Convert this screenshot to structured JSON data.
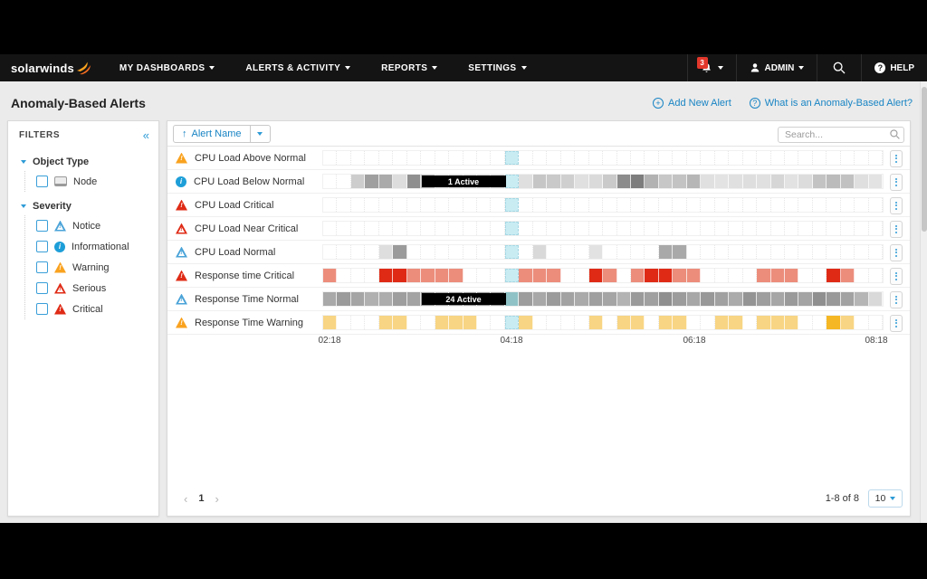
{
  "icons": {
    "plus": "+",
    "question": "?",
    "collapse": "«",
    "sort_asc": "↑",
    "prev": "‹",
    "next": "›",
    "exclamation": "!",
    "info_letter": "i"
  },
  "nav": {
    "brand": "solarwinds",
    "items": [
      {
        "label": "MY DASHBOARDS"
      },
      {
        "label": "ALERTS & ACTIVITY"
      },
      {
        "label": "REPORTS"
      },
      {
        "label": "SETTINGS"
      }
    ],
    "notification_count": "3",
    "user_label": "ADMIN",
    "help_label": "HELP"
  },
  "page": {
    "title": "Anomaly-Based Alerts",
    "add_new_alert": "Add New Alert",
    "what_is_link": "What is an Anomaly-Based Alert?"
  },
  "filters": {
    "title": "FILTERS",
    "groups": [
      {
        "label": "Object Type",
        "items": [
          {
            "label": "Node",
            "icon": "node"
          }
        ]
      },
      {
        "label": "Severity",
        "items": [
          {
            "label": "Notice",
            "icon": "notice"
          },
          {
            "label": "Informational",
            "icon": "informational"
          },
          {
            "label": "Warning",
            "icon": "warning"
          },
          {
            "label": "Serious",
            "icon": "serious"
          },
          {
            "label": "Critical",
            "icon": "critical"
          }
        ]
      }
    ]
  },
  "toolbar": {
    "sort_label": "Alert Name",
    "search_placeholder": "Search..."
  },
  "timeline": {
    "axis_labels": [
      "02:18",
      "04:18",
      "06:18",
      "08:18"
    ],
    "now_color": "#c9ecf3"
  },
  "colors": {
    "accent_blue": "#1884c4",
    "icon_blue": "#2e9bd6",
    "critical_red": "#df2b16",
    "salmon": "#ec8d7c",
    "warning_orange": "#f9a21f",
    "yellow": "#f8d584",
    "gold": "#f5b723",
    "info_blue": "#1d9ed8",
    "notice_blue": "#4aa3d8",
    "badge_red": "#e2372b"
  },
  "rows": [
    {
      "name": "CPU Load Above Normal",
      "severity": "warning",
      "cells": [
        "",
        "",
        "",
        "",
        "",
        "",
        "",
        "",
        "",
        "",
        "",
        "",
        "",
        "now",
        "",
        "",
        "",
        "",
        "",
        "",
        "",
        "",
        "",
        "",
        "",
        "",
        "",
        "",
        "",
        "",
        "",
        "",
        "",
        "",
        "",
        "",
        "",
        "",
        "",
        ""
      ]
    },
    {
      "name": "CPU Load Below Normal",
      "severity": "informational",
      "pill": {
        "label": "1 Active",
        "start": 7,
        "span": 6
      },
      "cells": [
        "",
        "",
        "#cdcdcd",
        "#9f9f9f",
        "#aaaaaa",
        "#dddddd",
        "#8f8f8f",
        "#bfbfbf",
        "#e2e2e2",
        "#d9d9d9",
        "#d9d9d9",
        "#d9d9d9",
        "#d9d9d9",
        "now",
        "#dfdfdf",
        "#c6c6c6",
        "#c9c9c9",
        "#cfcfcf",
        "#e0e0e0",
        "#dadada",
        "#cacaca",
        "#8c8c8c",
        "#7d7d7d",
        "#b2b2b2",
        "#c7c7c7",
        "#c3c3c3",
        "#b6b6b6",
        "#e0e0e0",
        "#e3e3e3",
        "#e0e0e0",
        "#dedede",
        "#e0e0e0",
        "#d6d6d6",
        "#e2e2e2",
        "#dcdcdc",
        "#c3c3c3",
        "#bbbbbb",
        "#c1c1c1",
        "#dfdfdf",
        "#e3e3e3"
      ]
    },
    {
      "name": "CPU Load Critical",
      "severity": "critical",
      "cells": [
        "",
        "",
        "",
        "",
        "",
        "",
        "",
        "",
        "",
        "",
        "",
        "",
        "",
        "now",
        "",
        "",
        "",
        "",
        "",
        "",
        "",
        "",
        "",
        "",
        "",
        "",
        "",
        "",
        "",
        "",
        "",
        "",
        "",
        "",
        "",
        "",
        "",
        "",
        "",
        ""
      ]
    },
    {
      "name": "CPU Load Near Critical",
      "severity": "serious",
      "cells": [
        "",
        "",
        "",
        "",
        "",
        "",
        "",
        "",
        "",
        "",
        "",
        "",
        "",
        "now",
        "",
        "",
        "",
        "",
        "",
        "",
        "",
        "",
        "",
        "",
        "",
        "",
        "",
        "",
        "",
        "",
        "",
        "",
        "",
        "",
        "",
        "",
        "",
        "",
        "",
        ""
      ]
    },
    {
      "name": "CPU Load Normal",
      "severity": "notice",
      "cells": [
        "",
        "",
        "",
        "",
        "#dedede",
        "#9b9b9b",
        "",
        "",
        "",
        "",
        "",
        "",
        "",
        "now",
        "",
        "#d9d9d9",
        "",
        "",
        "",
        "#e2e2e2",
        "",
        "",
        "",
        "",
        "#a9a9a9",
        "#a9a9a9",
        "",
        "",
        "",
        "",
        "",
        "",
        "",
        "",
        "",
        "",
        "",
        "",
        "",
        ""
      ]
    },
    {
      "name": "Response time Critical",
      "severity": "critical",
      "cells": [
        "s",
        "",
        "",
        "",
        "r",
        "r",
        "s",
        "s",
        "s",
        "s",
        "",
        "",
        "",
        "now",
        "s",
        "s",
        "s",
        "",
        "",
        "r",
        "s",
        "",
        "s",
        "r",
        "r",
        "s",
        "s",
        "",
        "",
        "",
        "",
        "s",
        "s",
        "s",
        "",
        "",
        "r",
        "s",
        "",
        ""
      ]
    },
    {
      "name": "Response Time Normal",
      "severity": "notice",
      "pill": {
        "label": "24 Active",
        "start": 7,
        "span": 6
      },
      "cells": [
        "#a9a9a9",
        "#9b9b9b",
        "#a5a5a5",
        "#b0b0b0",
        "#adadad",
        "#9e9e9e",
        "#a3a3a3",
        "#989898",
        "#a6a6a6",
        "#999999",
        "#999999",
        "#999999",
        "#999999",
        "#8fc2c6",
        "#9d9d9d",
        "#a8a8a8",
        "#9b9b9b",
        "#a2a2a2",
        "#aaaaaa",
        "#9f9f9f",
        "#a5a5a5",
        "#b3b3b3",
        "#9a9a9a",
        "#a0a0a0",
        "#8f8f8f",
        "#9c9c9c",
        "#a7a7a7",
        "#989898",
        "#a1a1a1",
        "#ababab",
        "#949494",
        "#9e9e9e",
        "#a6a6a6",
        "#9a9a9a",
        "#a4a4a4",
        "#8f8f8f",
        "#999999",
        "#a2a2a2",
        "#b5b5b5",
        "#d9d9d9"
      ]
    },
    {
      "name": "Response Time Warning",
      "severity": "warning",
      "cells": [
        "y",
        "",
        "",
        "",
        "y",
        "y",
        "",
        "",
        "y",
        "y",
        "y",
        "",
        "",
        "now",
        "y",
        "",
        "",
        "",
        "",
        "y",
        "",
        "y",
        "y",
        "",
        "y",
        "y",
        "",
        "",
        "y",
        "y",
        "",
        "y",
        "y",
        "y",
        "",
        "",
        "Y",
        "y",
        "",
        ""
      ]
    }
  ],
  "pagination": {
    "page": "1",
    "range_label": "1-8 of 8",
    "page_size": "10"
  }
}
